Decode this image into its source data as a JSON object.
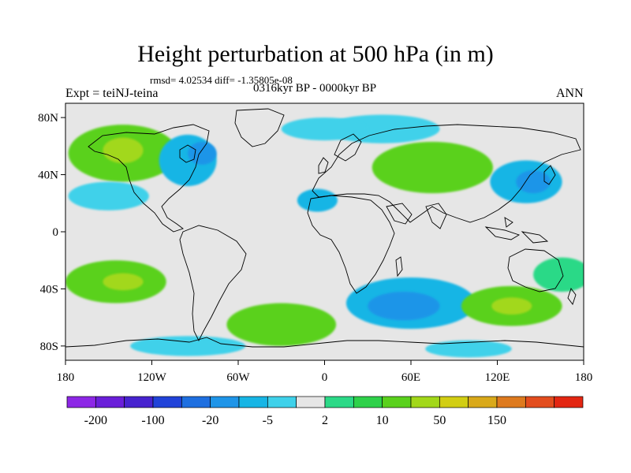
{
  "title": "Height perturbation at 500 hPa (in m)",
  "stats_line": "rmsd= 4.02534  diff= -1.35805e-08",
  "period_line": "0316kyr BP - 0000kyr BP",
  "experiment_label": "Expt = teiNJ-teina",
  "season_label": "ANN",
  "chart_data": {
    "type": "heatmap",
    "variable": "500 hPa geopotential height perturbation",
    "units": "m",
    "projection": "cylindrical equidistant",
    "xlim": [
      -180,
      180
    ],
    "ylim": [
      -90,
      90
    ],
    "x_ticks": [
      {
        "lon": -180,
        "label": "180"
      },
      {
        "lon": -120,
        "label": "120W"
      },
      {
        "lon": -60,
        "label": "60W"
      },
      {
        "lon": 0,
        "label": "0"
      },
      {
        "lon": 60,
        "label": "60E"
      },
      {
        "lon": 120,
        "label": "120E"
      },
      {
        "lon": 180,
        "label": "180"
      }
    ],
    "y_ticks": [
      {
        "lat": 80,
        "label": "80N"
      },
      {
        "lat": 40,
        "label": "40N"
      },
      {
        "lat": 0,
        "label": "0"
      },
      {
        "lat": -40,
        "label": "40S"
      },
      {
        "lat": -80,
        "label": "80S"
      }
    ],
    "colorbar": {
      "colors": [
        "#8d27e6",
        "#6a1fd9",
        "#4723cf",
        "#2143d9",
        "#1e6fe0",
        "#1f95e8",
        "#17b5e5",
        "#3fd1ea",
        "#e6e6e6",
        "#2cd987",
        "#2ed14a",
        "#5ad11d",
        "#a2d81a",
        "#d2ce13",
        "#d9a91a",
        "#de7a1e",
        "#e34d1e",
        "#e32612"
      ],
      "labels": [
        {
          "after_box": 1,
          "text": "-200"
        },
        {
          "after_box": 3,
          "text": "-100"
        },
        {
          "after_box": 5,
          "text": "-20"
        },
        {
          "after_box": 7,
          "text": "-5"
        },
        {
          "after_box": 9,
          "text": "2"
        },
        {
          "after_box": 11,
          "text": "10"
        },
        {
          "after_box": 13,
          "text": "50"
        },
        {
          "after_box": 15,
          "text": "150"
        }
      ]
    },
    "regions": [
      {
        "lon": -140,
        "lat": 55,
        "rlon": 38,
        "rlat": 20,
        "level": 11
      },
      {
        "lon": -140,
        "lat": 57,
        "rlon": 14,
        "rlat": 9,
        "level": 12
      },
      {
        "lon": -95,
        "lat": 50,
        "rlon": 20,
        "rlat": 18,
        "level": 6
      },
      {
        "lon": -85,
        "lat": 55,
        "rlon": 10,
        "rlat": 8,
        "level": 5
      },
      {
        "lon": -150,
        "lat": 25,
        "rlon": 28,
        "rlat": 10,
        "level": 7
      },
      {
        "lon": 75,
        "lat": 45,
        "rlon": 42,
        "rlat": 18,
        "level": 11
      },
      {
        "lon": 40,
        "lat": 72,
        "rlon": 40,
        "rlat": 10,
        "level": 7
      },
      {
        "lon": 140,
        "lat": 35,
        "rlon": 25,
        "rlat": 15,
        "level": 6
      },
      {
        "lon": 145,
        "lat": 35,
        "rlon": 12,
        "rlat": 8,
        "level": 5
      },
      {
        "lon": -5,
        "lat": 22,
        "rlon": 14,
        "rlat": 8,
        "level": 6
      },
      {
        "lon": 0,
        "lat": 72,
        "rlon": 30,
        "rlat": 8,
        "level": 7
      },
      {
        "lon": -145,
        "lat": -35,
        "rlon": 35,
        "rlat": 15,
        "level": 11
      },
      {
        "lon": -140,
        "lat": -35,
        "rlon": 14,
        "rlat": 6,
        "level": 12
      },
      {
        "lon": 60,
        "lat": -50,
        "rlon": 45,
        "rlat": 18,
        "level": 6
      },
      {
        "lon": 55,
        "lat": -52,
        "rlon": 25,
        "rlat": 10,
        "level": 5
      },
      {
        "lon": -30,
        "lat": -65,
        "rlon": 38,
        "rlat": 15,
        "level": 11
      },
      {
        "lon": 130,
        "lat": -52,
        "rlon": 35,
        "rlat": 14,
        "level": 11
      },
      {
        "lon": 130,
        "lat": -52,
        "rlon": 14,
        "rlat": 6,
        "level": 12
      },
      {
        "lon": 165,
        "lat": -30,
        "rlon": 20,
        "rlat": 12,
        "level": 9
      },
      {
        "lon": -95,
        "lat": -80,
        "rlon": 40,
        "rlat": 7,
        "level": 7
      },
      {
        "lon": 100,
        "lat": -82,
        "rlon": 30,
        "rlat": 6,
        "level": 7
      }
    ]
  }
}
